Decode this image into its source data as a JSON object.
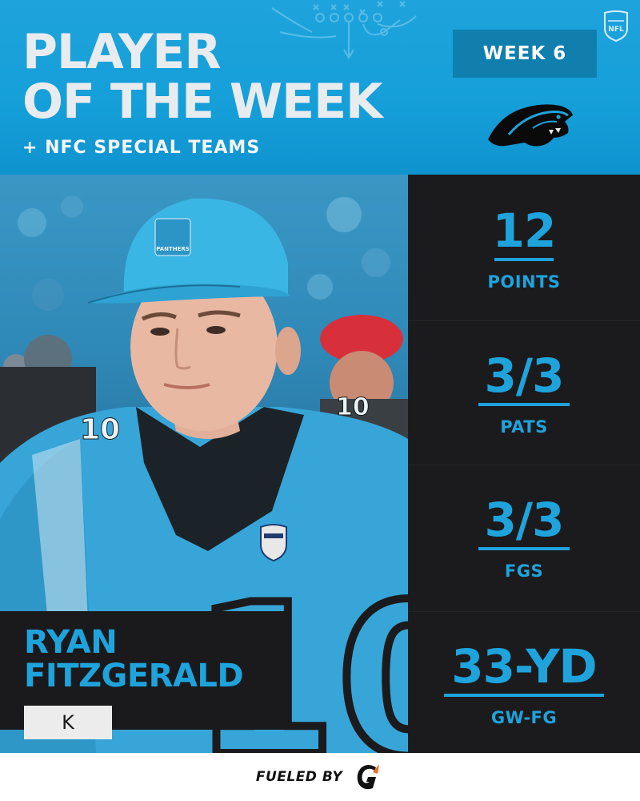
{
  "header": {
    "title_line1": "PLAYER",
    "title_line2": "OF THE WEEK",
    "subtitle": "+ NFC SPECIAL TEAMS",
    "week_label": "WEEK 6"
  },
  "player": {
    "name_line1": "RYAN",
    "name_line2": "FITZGERALD",
    "position": "K",
    "cap_logo_text": "PANTHERS",
    "jersey_number": "10"
  },
  "stats": [
    {
      "value": "12",
      "label": "POINTS"
    },
    {
      "value": "3/3",
      "label": "PATS"
    },
    {
      "value": "3/3",
      "label": "FGS"
    },
    {
      "value": "33-YD",
      "label": "GW-FG"
    }
  ],
  "footer": {
    "fueled_by": "FUELED BY"
  },
  "colors": {
    "accent": "#1fa3dc",
    "dark_panel": "#1b1b1d",
    "badge": "#117fae"
  },
  "icons": [
    "nfl-shield-icon",
    "panthers-logo-icon",
    "gatorade-g-icon",
    "play-diagram-icon"
  ]
}
